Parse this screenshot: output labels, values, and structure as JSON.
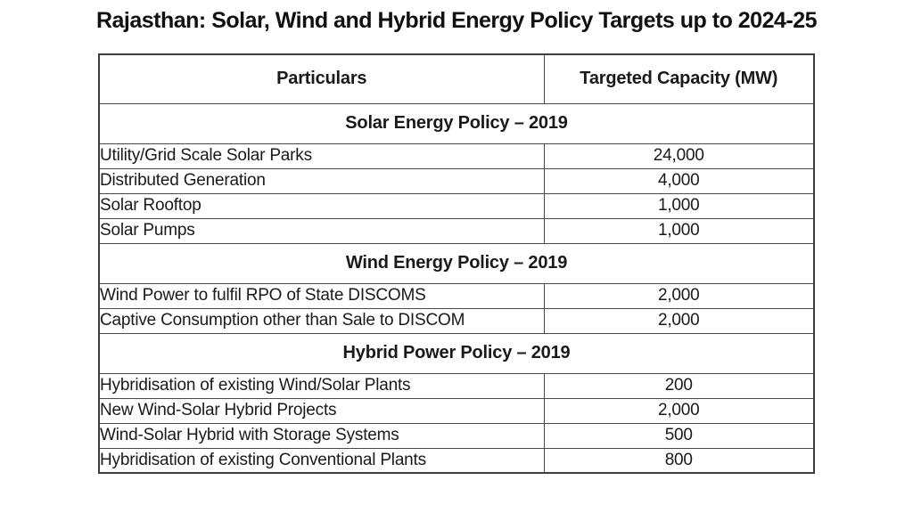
{
  "chart_data": {
    "type": "table",
    "title": "Rajasthan: Solar, Wind and Hybrid Energy Policy Targets up to 2024-25",
    "columns": [
      "Particulars",
      "Targeted Capacity (MW)"
    ],
    "sections": [
      {
        "header": "Solar Energy Policy – 2019",
        "rows": [
          {
            "particular": "Utility/Grid Scale Solar Parks",
            "capacity_mw": 24000,
            "capacity_display": "24,000"
          },
          {
            "particular": "Distributed Generation",
            "capacity_mw": 4000,
            "capacity_display": "4,000"
          },
          {
            "particular": "Solar Rooftop",
            "capacity_mw": 1000,
            "capacity_display": "1,000"
          },
          {
            "particular": "Solar Pumps",
            "capacity_mw": 1000,
            "capacity_display": "1,000"
          }
        ]
      },
      {
        "header": "Wind Energy Policy – 2019",
        "rows": [
          {
            "particular": "Wind Power to fulfil RPO of State DISCOMS",
            "capacity_mw": 2000,
            "capacity_display": "2,000"
          },
          {
            "particular": "Captive Consumption other than Sale to DISCOM",
            "capacity_mw": 2000,
            "capacity_display": "2,000"
          }
        ]
      },
      {
        "header": "Hybrid Power Policy – 2019",
        "rows": [
          {
            "particular": "Hybridisation of existing Wind/Solar Plants",
            "capacity_mw": 200,
            "capacity_display": "200"
          },
          {
            "particular": "New Wind-Solar Hybrid Projects",
            "capacity_mw": 2000,
            "capacity_display": "2,000"
          },
          {
            "particular": "Wind-Solar Hybrid with Storage Systems",
            "capacity_mw": 500,
            "capacity_display": "500"
          },
          {
            "particular": "Hybridisation of existing Conventional Plants",
            "capacity_mw": 800,
            "capacity_display": "800"
          }
        ]
      }
    ],
    "layout": {
      "grid": "on",
      "header_bold": true,
      "values_centered": true
    }
  },
  "colors": {
    "background": "#ffffff",
    "text": "#1a1a1a",
    "border": "#4a4a4a"
  }
}
